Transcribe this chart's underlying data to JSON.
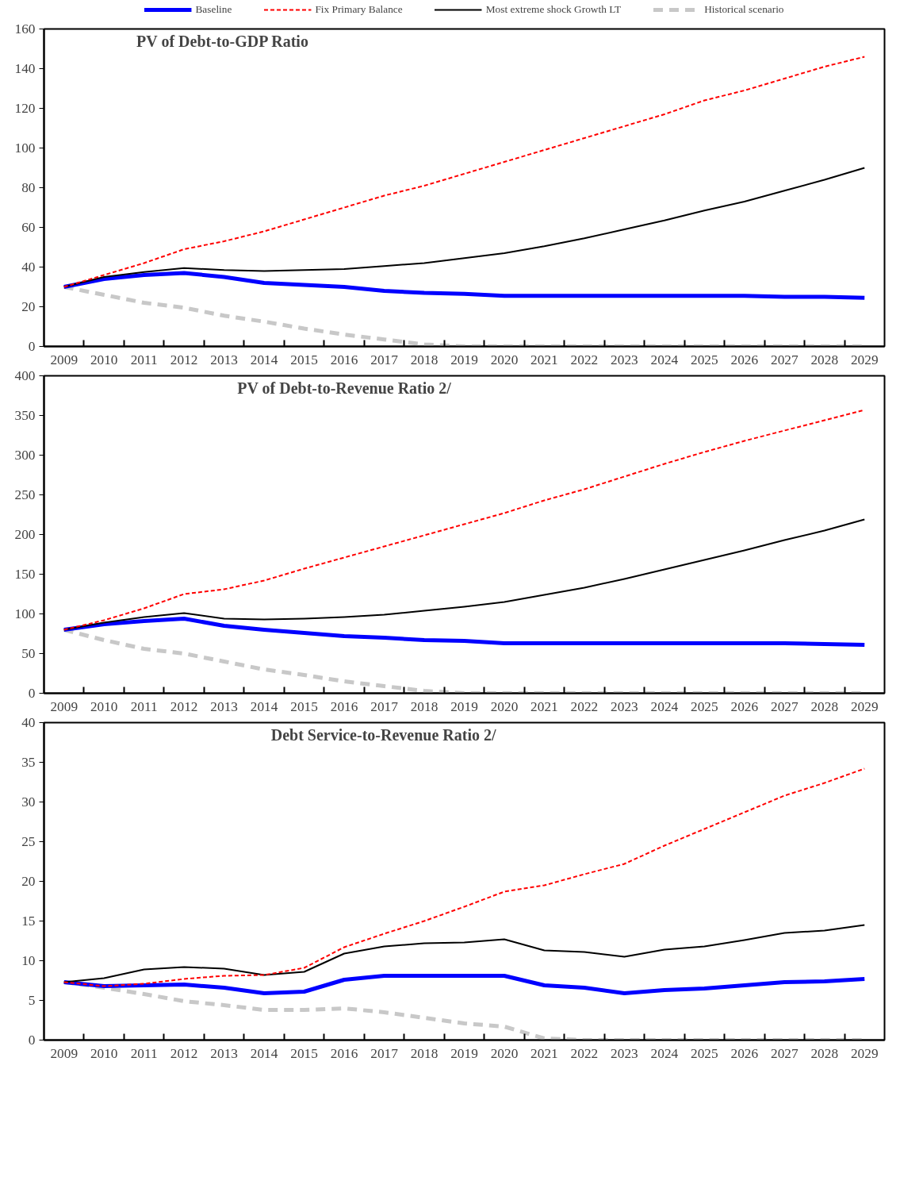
{
  "chart_data": [
    {
      "type": "line",
      "title": "PV of Debt-to-GDP Ratio",
      "legend": "top",
      "categories": [
        "2009",
        "2010",
        "2011",
        "2012",
        "2013",
        "2014",
        "2015",
        "2016",
        "2017",
        "2018",
        "2019",
        "2020",
        "2021",
        "2022",
        "2023",
        "2024",
        "2025",
        "2026",
        "2027",
        "2028",
        "2029"
      ],
      "ylim": [
        0,
        160
      ],
      "yticks": [
        0,
        20,
        40,
        60,
        80,
        100,
        120,
        140,
        160
      ],
      "grid": false,
      "series": [
        {
          "name": "Baseline",
          "color": "#0000ff",
          "line_style": "solid",
          "values": [
            30,
            34,
            36,
            37,
            35,
            32,
            31,
            30,
            28,
            27,
            26.5,
            25.5,
            25.5,
            25.5,
            25.5,
            25.5,
            25.5,
            25.5,
            25,
            25,
            24.5
          ]
        },
        {
          "name": "Fix Primary Balance",
          "color": "#ff0000",
          "line_style": "dashed",
          "values": [
            30,
            36,
            42,
            49,
            53,
            58,
            64,
            70,
            76,
            81,
            87,
            93,
            99,
            105,
            111,
            117,
            124,
            129,
            135,
            141,
            146
          ]
        },
        {
          "name": "Most extreme shock Growth LT",
          "color": "#000000",
          "line_style": "solid",
          "values": [
            30,
            35,
            37.5,
            39.5,
            38.5,
            38,
            38.5,
            39,
            40.5,
            42,
            44.5,
            47,
            50.5,
            54.5,
            59,
            63.5,
            68.5,
            73,
            78.5,
            84,
            90
          ]
        },
        {
          "name": "Historical scenario",
          "color": "#c8c8c8",
          "line_style": "dashed",
          "values": [
            30,
            26,
            22,
            19.5,
            15.5,
            12.5,
            9,
            6,
            3.5,
            1,
            0,
            0,
            0,
            0,
            0,
            0,
            0,
            0,
            0,
            0,
            0
          ]
        }
      ]
    },
    {
      "type": "line",
      "title": "PV of Debt-to-Revenue Ratio 2/",
      "categories": [
        "2009",
        "2010",
        "2011",
        "2012",
        "2013",
        "2014",
        "2015",
        "2016",
        "2017",
        "2018",
        "2019",
        "2020",
        "2021",
        "2022",
        "2023",
        "2024",
        "2025",
        "2026",
        "2027",
        "2028",
        "2029"
      ],
      "ylim": [
        0,
        400
      ],
      "yticks": [
        0,
        50,
        100,
        150,
        200,
        250,
        300,
        350,
        400
      ],
      "grid": false,
      "series": [
        {
          "color": "#0000ff",
          "line_style": "solid",
          "values": [
            80,
            87,
            91,
            94,
            85,
            80,
            76,
            72,
            70,
            67,
            66,
            63,
            63,
            63,
            63,
            63,
            63,
            63,
            63,
            62,
            61
          ]
        },
        {
          "color": "#ff0000",
          "line_style": "dashed",
          "values": [
            80,
            92,
            107,
            125,
            131,
            142,
            157,
            171,
            185,
            199,
            213,
            227,
            243,
            257,
            273,
            289,
            304,
            318,
            331,
            344,
            357
          ]
        },
        {
          "color": "#000000",
          "line_style": "solid",
          "values": [
            80,
            89,
            96,
            101,
            94,
            93,
            94,
            96,
            99,
            104,
            109,
            115,
            124,
            133,
            144,
            156,
            168,
            180,
            193,
            205,
            219
          ]
        },
        {
          "color": "#c8c8c8",
          "line_style": "dashed",
          "values": [
            80,
            67,
            56,
            50,
            40,
            30,
            23,
            15,
            9,
            3,
            0,
            0,
            0,
            0,
            0,
            0,
            0,
            0,
            0,
            0,
            0
          ]
        }
      ]
    },
    {
      "type": "line",
      "title": "Debt Service-to-Revenue Ratio 2/",
      "categories": [
        "2009",
        "2010",
        "2011",
        "2012",
        "2013",
        "2014",
        "2015",
        "2016",
        "2017",
        "2018",
        "2019",
        "2020",
        "2021",
        "2022",
        "2023",
        "2024",
        "2025",
        "2026",
        "2027",
        "2028",
        "2029"
      ],
      "ylim": [
        0,
        40
      ],
      "yticks": [
        0,
        5,
        10,
        15,
        20,
        25,
        30,
        35,
        40
      ],
      "grid": false,
      "series": [
        {
          "color": "#0000ff",
          "line_style": "solid",
          "values": [
            7.3,
            6.8,
            6.9,
            7.0,
            6.6,
            5.9,
            6.1,
            7.6,
            8.1,
            8.1,
            8.1,
            8.1,
            6.9,
            6.6,
            5.9,
            6.3,
            6.5,
            6.9,
            7.3,
            7.4,
            7.7
          ]
        },
        {
          "color": "#ff0000",
          "line_style": "dashed",
          "values": [
            7.3,
            6.8,
            7.1,
            7.7,
            8.1,
            8.2,
            9.1,
            11.7,
            13.4,
            15,
            16.8,
            18.7,
            19.5,
            20.9,
            22.2,
            24.5,
            26.6,
            28.7,
            30.8,
            32.4,
            34.2
          ]
        },
        {
          "color": "#000000",
          "line_style": "solid",
          "values": [
            7.3,
            7.8,
            8.9,
            9.2,
            9.0,
            8.2,
            8.6,
            10.9,
            11.8,
            12.2,
            12.3,
            12.7,
            11.3,
            11.1,
            10.5,
            11.4,
            11.8,
            12.6,
            13.5,
            13.8,
            14.5
          ]
        },
        {
          "color": "#c8c8c8",
          "line_style": "dashed",
          "values": [
            7.3,
            6.6,
            5.8,
            4.9,
            4.4,
            3.8,
            3.8,
            4.0,
            3.5,
            2.8,
            2.1,
            1.7,
            0.2,
            0,
            0,
            0,
            0,
            0,
            0,
            0,
            0
          ]
        }
      ]
    }
  ]
}
